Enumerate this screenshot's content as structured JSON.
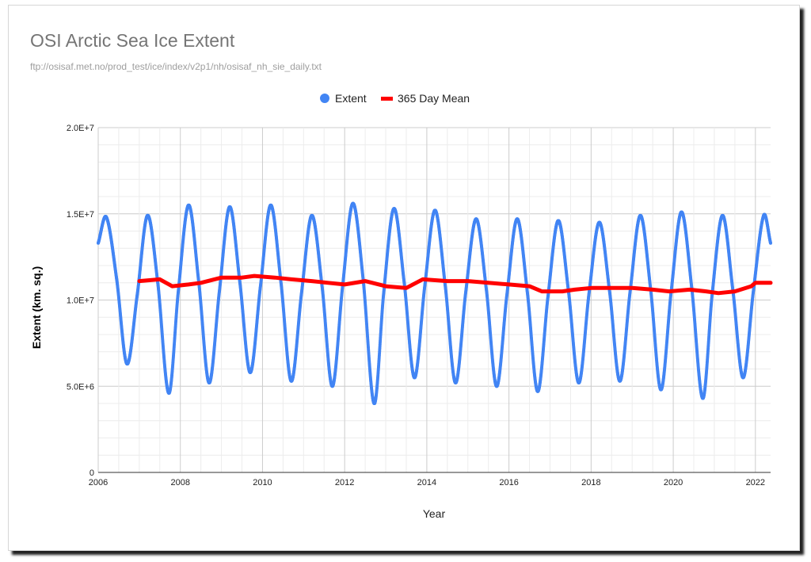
{
  "chart_data": {
    "type": "scatter",
    "title": "OSI Arctic Sea Ice Extent",
    "subtitle": "ftp://osisaf.met.no/prod_test/ice/index/v2p1/nh/osisaf_nh_sie_daily.txt",
    "xlabel": "Year",
    "ylabel": "Extent (km. sq.)",
    "xlim": [
      2006,
      2022.37
    ],
    "ylim": [
      0,
      20000000
    ],
    "x_ticks": [
      2006,
      2008,
      2010,
      2012,
      2014,
      2016,
      2018,
      2020,
      2022
    ],
    "y_ticks": [
      {
        "value": 0,
        "label": "0"
      },
      {
        "value": 5000000,
        "label": "5.0E+6"
      },
      {
        "value": 10000000,
        "label": "1.0E+7"
      },
      {
        "value": 15000000,
        "label": "1.5E+7"
      },
      {
        "value": 20000000,
        "label": "2.0E+7"
      }
    ],
    "grid": true,
    "legend_position": "top",
    "series": [
      {
        "name": "Extent",
        "style": "points",
        "color": "#4285f4",
        "points": [
          [
            2006.0,
            13300000
          ],
          [
            2006.2,
            14800000
          ],
          [
            2006.45,
            11200000
          ],
          [
            2006.7,
            6300000
          ],
          [
            2006.95,
            10300000
          ],
          [
            2007.2,
            14900000
          ],
          [
            2007.45,
            11000000
          ],
          [
            2007.72,
            4600000
          ],
          [
            2007.95,
            10500000
          ],
          [
            2008.2,
            15500000
          ],
          [
            2008.45,
            11000000
          ],
          [
            2008.7,
            5200000
          ],
          [
            2008.95,
            10500000
          ],
          [
            2009.2,
            15400000
          ],
          [
            2009.45,
            11000000
          ],
          [
            2009.7,
            5800000
          ],
          [
            2009.95,
            10800000
          ],
          [
            2010.2,
            15500000
          ],
          [
            2010.45,
            11000000
          ],
          [
            2010.7,
            5300000
          ],
          [
            2010.95,
            10400000
          ],
          [
            2011.2,
            14900000
          ],
          [
            2011.45,
            10800000
          ],
          [
            2011.7,
            5000000
          ],
          [
            2011.95,
            10800000
          ],
          [
            2012.2,
            15600000
          ],
          [
            2012.45,
            11200000
          ],
          [
            2012.72,
            4000000
          ],
          [
            2012.95,
            10400000
          ],
          [
            2013.2,
            15300000
          ],
          [
            2013.45,
            11000000
          ],
          [
            2013.7,
            5500000
          ],
          [
            2013.95,
            10800000
          ],
          [
            2014.2,
            15200000
          ],
          [
            2014.45,
            10800000
          ],
          [
            2014.7,
            5200000
          ],
          [
            2014.95,
            10500000
          ],
          [
            2015.2,
            14700000
          ],
          [
            2015.45,
            10600000
          ],
          [
            2015.7,
            5000000
          ],
          [
            2015.95,
            10300000
          ],
          [
            2016.2,
            14700000
          ],
          [
            2016.45,
            10400000
          ],
          [
            2016.7,
            4700000
          ],
          [
            2016.95,
            10200000
          ],
          [
            2017.2,
            14600000
          ],
          [
            2017.45,
            10500000
          ],
          [
            2017.7,
            5200000
          ],
          [
            2017.95,
            10400000
          ],
          [
            2018.2,
            14500000
          ],
          [
            2018.45,
            10500000
          ],
          [
            2018.7,
            5300000
          ],
          [
            2018.95,
            10500000
          ],
          [
            2019.2,
            14900000
          ],
          [
            2019.45,
            10600000
          ],
          [
            2019.7,
            4800000
          ],
          [
            2019.95,
            10500000
          ],
          [
            2020.2,
            15100000
          ],
          [
            2020.45,
            10700000
          ],
          [
            2020.72,
            4300000
          ],
          [
            2020.95,
            10400000
          ],
          [
            2021.2,
            14900000
          ],
          [
            2021.45,
            10600000
          ],
          [
            2021.7,
            5500000
          ],
          [
            2021.95,
            10500000
          ],
          [
            2022.2,
            14900000
          ],
          [
            2022.37,
            13300000
          ]
        ]
      },
      {
        "name": "365 Day Mean",
        "style": "line",
        "color": "#ff0000",
        "points": [
          [
            2007.0,
            11100000
          ],
          [
            2007.5,
            11200000
          ],
          [
            2007.8,
            10800000
          ],
          [
            2008.2,
            10900000
          ],
          [
            2008.5,
            11000000
          ],
          [
            2009.0,
            11300000
          ],
          [
            2009.5,
            11300000
          ],
          [
            2009.8,
            11400000
          ],
          [
            2010.3,
            11300000
          ],
          [
            2010.7,
            11200000
          ],
          [
            2011.2,
            11100000
          ],
          [
            2011.6,
            11000000
          ],
          [
            2012.0,
            10900000
          ],
          [
            2012.5,
            11100000
          ],
          [
            2013.0,
            10800000
          ],
          [
            2013.5,
            10700000
          ],
          [
            2013.9,
            11200000
          ],
          [
            2014.5,
            11100000
          ],
          [
            2015.0,
            11100000
          ],
          [
            2015.5,
            11000000
          ],
          [
            2016.0,
            10900000
          ],
          [
            2016.5,
            10800000
          ],
          [
            2016.8,
            10500000
          ],
          [
            2017.3,
            10500000
          ],
          [
            2017.6,
            10600000
          ],
          [
            2018.0,
            10700000
          ],
          [
            2018.5,
            10700000
          ],
          [
            2019.0,
            10700000
          ],
          [
            2019.5,
            10600000
          ],
          [
            2019.9,
            10500000
          ],
          [
            2020.4,
            10600000
          ],
          [
            2020.8,
            10500000
          ],
          [
            2021.1,
            10400000
          ],
          [
            2021.5,
            10500000
          ],
          [
            2021.9,
            10800000
          ],
          [
            2022.0,
            11000000
          ],
          [
            2022.37,
            11000000
          ]
        ]
      }
    ]
  }
}
